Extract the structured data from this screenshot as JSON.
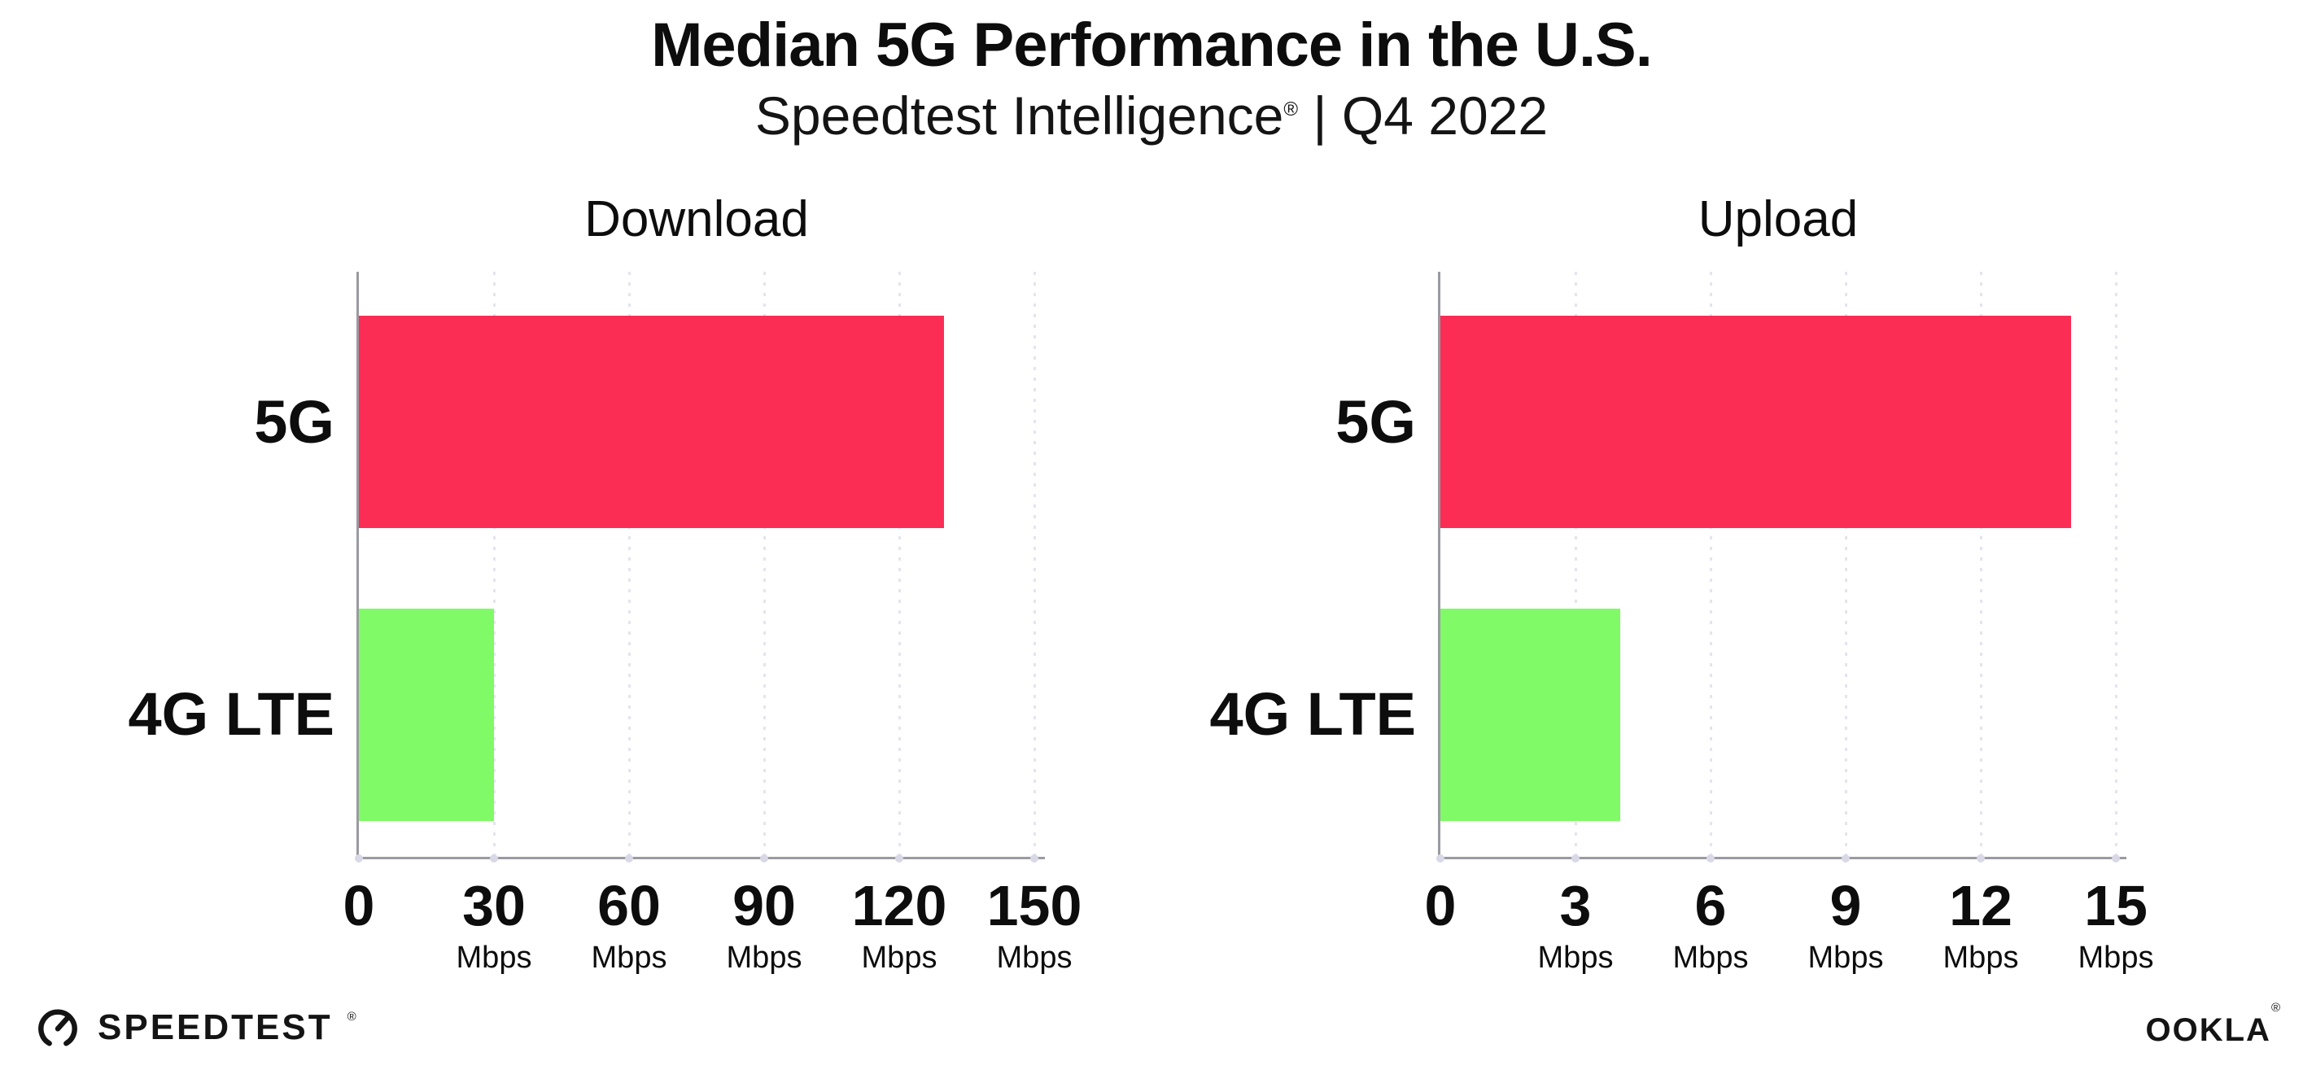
{
  "header": {
    "title": "Median 5G Performance in the U.S.",
    "subtitle_brand": "Speedtest Intelligence",
    "subtitle_reg": "®",
    "subtitle_rest": " | Q4 2022"
  },
  "chart_data": [
    {
      "type": "bar",
      "orientation": "horizontal",
      "title": "Download",
      "categories": [
        "5G",
        "4G LTE"
      ],
      "values": [
        130,
        30
      ],
      "unit": "Mbps",
      "xlim": [
        0,
        150
      ],
      "xticks": [
        0,
        30,
        60,
        90,
        120,
        150
      ],
      "grid": "dotted-vertical",
      "legend": "none",
      "bar_colors": [
        "#fb2d55",
        "#80fa66"
      ]
    },
    {
      "type": "bar",
      "orientation": "horizontal",
      "title": "Upload",
      "categories": [
        "5G",
        "4G LTE"
      ],
      "values": [
        14,
        4
      ],
      "unit": "Mbps",
      "xlim": [
        0,
        15
      ],
      "xticks": [
        0,
        3,
        6,
        9,
        12,
        15
      ],
      "grid": "dotted-vertical",
      "legend": "none",
      "bar_colors": [
        "#fb2d55",
        "#80fa66"
      ]
    }
  ],
  "footer": {
    "speedtest_label": "SPEEDTEST",
    "speedtest_reg": "®",
    "ookla_label": "OOKLA",
    "ookla_reg": "®"
  },
  "colors": {
    "bar_5g": "#fb2d55",
    "bar_4g_lte": "#80fa66",
    "axis": "#9a9aa2",
    "gridline": "#e4e4ef",
    "axis_dot": "#d8d8e6",
    "text": "#0d0d0d"
  }
}
